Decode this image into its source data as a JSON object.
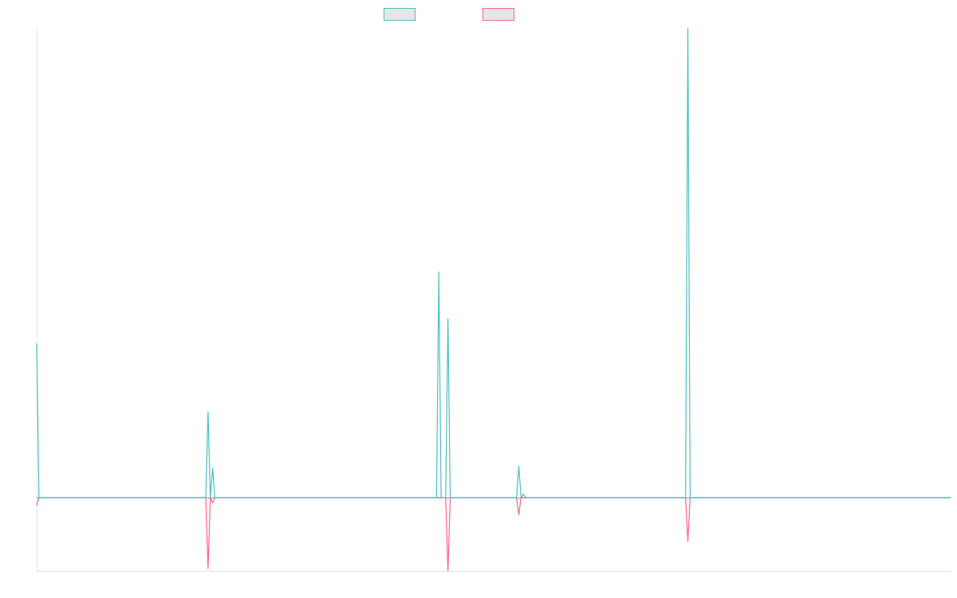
{
  "chart_data": {
    "type": "line",
    "title": "",
    "xlabel": "",
    "ylabel": "",
    "grid": false,
    "legend_position": "top-center",
    "ylim": [
      -1.0,
      6.4
    ],
    "xlim": [
      0,
      400
    ],
    "series": [
      {
        "color": "#4bc0c0",
        "fill": "#e6e6e6",
        "points": [
          [
            0,
            2.1
          ],
          [
            1,
            0
          ],
          [
            74,
            0
          ],
          [
            75,
            1.17
          ],
          [
            76,
            0
          ],
          [
            77,
            0.4
          ],
          [
            78,
            0
          ],
          [
            175,
            0
          ],
          [
            176,
            3.08
          ],
          [
            177,
            0
          ],
          [
            179,
            0
          ],
          [
            180,
            2.44
          ],
          [
            181,
            0
          ],
          [
            210,
            0
          ],
          [
            211,
            0.43
          ],
          [
            212,
            0
          ],
          [
            213,
            0.05
          ],
          [
            214,
            0
          ],
          [
            284,
            0
          ],
          [
            285,
            6.4
          ],
          [
            286,
            0
          ],
          [
            400,
            0
          ]
        ]
      },
      {
        "color": "#ff6384",
        "fill": "#e6e6e6",
        "points": [
          [
            0,
            -0.1
          ],
          [
            1,
            0
          ],
          [
            74,
            0
          ],
          [
            75,
            -0.97
          ],
          [
            76,
            0
          ],
          [
            77,
            -0.07
          ],
          [
            78,
            0
          ],
          [
            179,
            0
          ],
          [
            180,
            -1.0
          ],
          [
            181,
            0
          ],
          [
            210,
            0
          ],
          [
            211,
            -0.23
          ],
          [
            212,
            0
          ],
          [
            284,
            0
          ],
          [
            285,
            -0.6
          ],
          [
            286,
            0
          ],
          [
            400,
            0
          ]
        ]
      }
    ]
  }
}
